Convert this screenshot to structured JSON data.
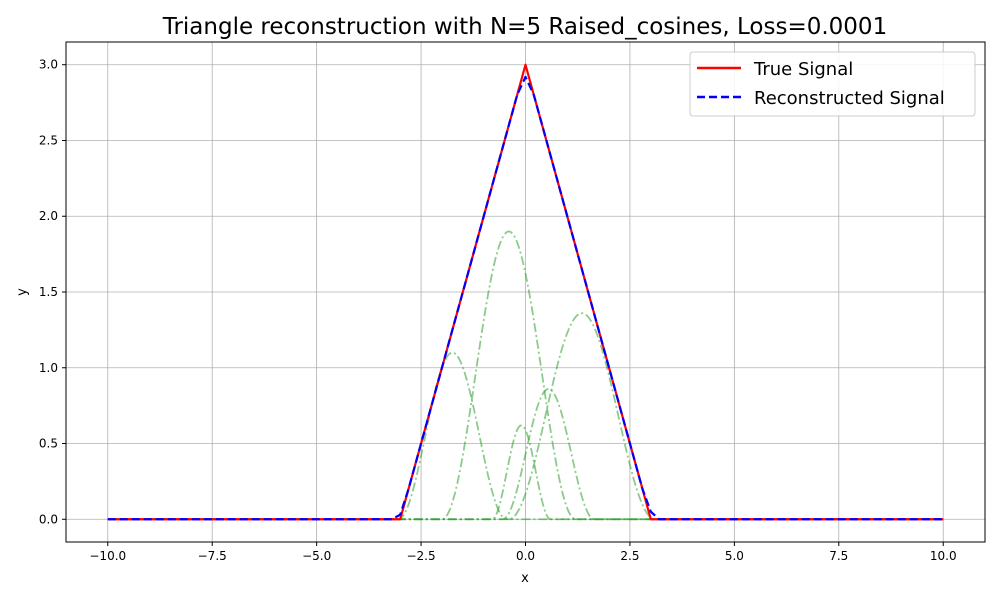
{
  "chart_data": {
    "type": "line",
    "title": "Triangle reconstruction with N=5 Raised_cosines, Loss=0.0001",
    "xlabel": "x",
    "ylabel": "y",
    "xlim": [
      -11.0,
      11.0
    ],
    "ylim": [
      -0.15,
      3.15
    ],
    "x_ticks": [
      -10.0,
      -7.5,
      -5.0,
      -2.5,
      0.0,
      2.5,
      5.0,
      7.5,
      10.0
    ],
    "x_tick_labels": [
      "−10.0",
      "−7.5",
      "−5.0",
      "−2.5",
      "0.0",
      "2.5",
      "5.0",
      "7.5",
      "10.0"
    ],
    "y_ticks": [
      0.0,
      0.5,
      1.0,
      1.5,
      2.0,
      2.5,
      3.0
    ],
    "y_tick_labels": [
      "0.0",
      "0.5",
      "1.0",
      "1.5",
      "2.0",
      "2.5",
      "3.0"
    ],
    "grid": true,
    "legend_position": "top-right",
    "series": [
      {
        "name": "True Signal",
        "color": "#ff0000",
        "style": "solid",
        "x": [
          -10,
          -3,
          0,
          3,
          10
        ],
        "y": [
          0,
          0,
          3,
          0,
          0
        ]
      },
      {
        "name": "Reconstructed Signal",
        "color": "#0000ff",
        "style": "dashed",
        "x": [
          -10,
          -3.2,
          -3.0,
          -2.8,
          -2.5,
          -2.0,
          -1.5,
          -1.0,
          -0.5,
          -0.2,
          0.0,
          0.2,
          0.5,
          1.0,
          1.5,
          2.0,
          2.5,
          2.8,
          3.0,
          3.2,
          10
        ],
        "y": [
          0,
          0,
          0.03,
          0.2,
          0.5,
          1.0,
          1.5,
          2.0,
          2.5,
          2.8,
          2.92,
          2.8,
          2.5,
          2.0,
          1.5,
          1.0,
          0.5,
          0.2,
          0.05,
          0.0,
          0
        ]
      }
    ],
    "components": {
      "color": "#2ca02c",
      "style": "dashdot",
      "opacity": 0.55,
      "x_range": [
        -10,
        10
      ],
      "items": [
        {
          "center": -1.75,
          "amplitude": 1.1,
          "half_width": 1.3
        },
        {
          "center": -0.4,
          "amplitude": 1.9,
          "half_width": 1.6
        },
        {
          "center": -0.1,
          "amplitude": 0.62,
          "half_width": 0.7
        },
        {
          "center": 0.55,
          "amplitude": 0.86,
          "half_width": 1.1
        },
        {
          "center": 1.35,
          "amplitude": 1.36,
          "half_width": 1.75
        }
      ]
    }
  }
}
